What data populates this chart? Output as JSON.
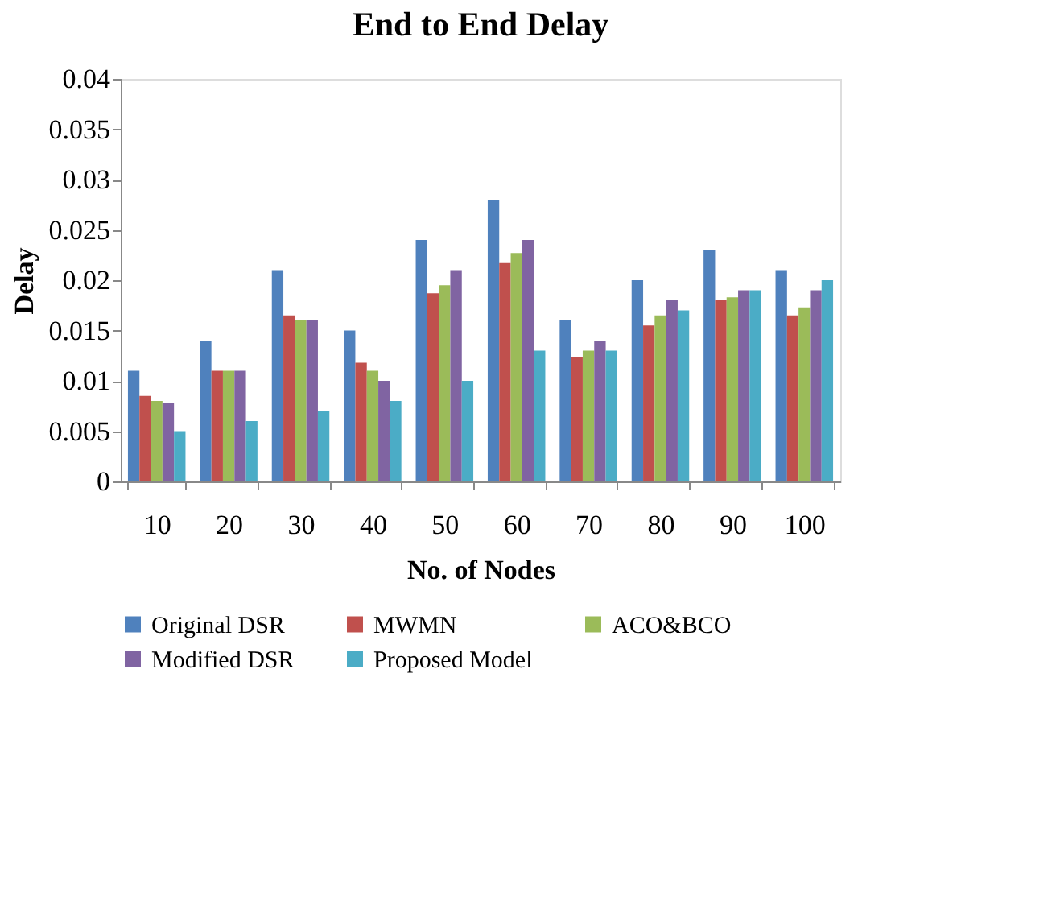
{
  "chart_data": {
    "type": "bar",
    "title": "End to End Delay",
    "xlabel": "No. of Nodes",
    "ylabel": "Delay",
    "categories": [
      "10",
      "20",
      "30",
      "40",
      "50",
      "60",
      "70",
      "80",
      "90",
      "100"
    ],
    "series": [
      {
        "name": "Original DSR",
        "color": "#4f81bd",
        "values": [
          0.011,
          0.014,
          0.021,
          0.015,
          0.024,
          0.028,
          0.016,
          0.02,
          0.023,
          0.021
        ]
      },
      {
        "name": "MWMN",
        "color": "#c0504d",
        "values": [
          0.0085,
          0.011,
          0.0165,
          0.0118,
          0.0187,
          0.0217,
          0.0124,
          0.0155,
          0.018,
          0.0165
        ]
      },
      {
        "name": "ACO&BCO",
        "color": "#9bbb59",
        "values": [
          0.008,
          0.011,
          0.016,
          0.011,
          0.0195,
          0.0227,
          0.013,
          0.0165,
          0.0183,
          0.0173
        ]
      },
      {
        "name": "Modified DSR",
        "color": "#8064a2",
        "values": [
          0.0078,
          0.011,
          0.016,
          0.01,
          0.021,
          0.024,
          0.014,
          0.018,
          0.019,
          0.019
        ]
      },
      {
        "name": "Proposed Model",
        "color": "#4bacc6",
        "values": [
          0.005,
          0.006,
          0.007,
          0.008,
          0.01,
          0.013,
          0.013,
          0.017,
          0.019,
          0.02
        ]
      }
    ],
    "ylim": [
      0,
      0.04
    ],
    "yticks": [
      0,
      0.005,
      0.01,
      0.015,
      0.02,
      0.025,
      0.03,
      0.035,
      0.04
    ],
    "grid": false,
    "legend": "bottom"
  }
}
